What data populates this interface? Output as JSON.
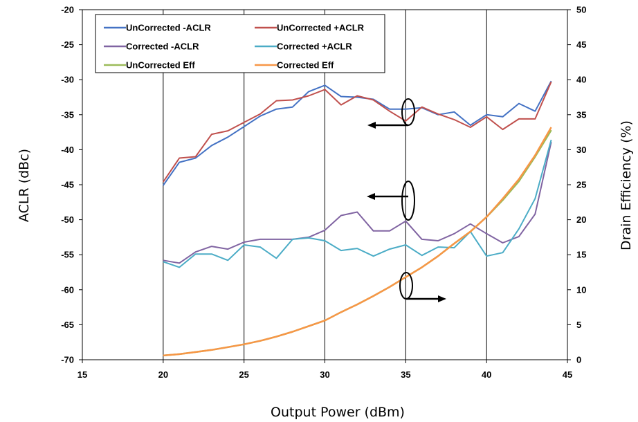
{
  "chart_data": {
    "type": "line",
    "xlabel": "Output Power (dBm)",
    "ylabel": "ACLR (dBc)",
    "y2label": "Drain Efficiency (%)",
    "xlim": [
      15,
      45
    ],
    "ylim": [
      -70,
      -20
    ],
    "y2lim": [
      0,
      50
    ],
    "xticks": [
      "15",
      "20",
      "25",
      "30",
      "35",
      "40",
      "45"
    ],
    "yticks": [
      "-20",
      "-25",
      "-30",
      "-35",
      "-40",
      "-45",
      "-50",
      "-55",
      "-60",
      "-65",
      "-70"
    ],
    "y2ticks": [
      "50",
      "45",
      "40",
      "35",
      "30",
      "25",
      "20",
      "15",
      "10",
      "5",
      "0"
    ],
    "grid": "vertical",
    "legend_position": "top-left",
    "series": [
      {
        "name": "UnCorrected -ACLR",
        "axis": "left",
        "color": "#4472C4",
        "x": [
          20,
          21,
          22,
          23,
          24,
          25,
          26,
          27,
          28,
          29,
          30,
          31,
          32,
          33,
          34,
          35,
          36,
          37,
          38,
          39,
          40,
          41,
          42,
          43,
          44
        ],
        "values": [
          -45.1,
          -41.8,
          -41.2,
          -39.4,
          -38.2,
          -36.7,
          -35.2,
          -34.2,
          -33.9,
          -31.7,
          -30.8,
          -32.4,
          -32.5,
          -32.8,
          -34.2,
          -34.2,
          -34.0,
          -35.0,
          -34.6,
          -36.5,
          -35.0,
          -35.3,
          -33.4,
          -34.5,
          -30.2
        ]
      },
      {
        "name": "UnCorrected +ACLR",
        "axis": "left",
        "color": "#C0504D",
        "x": [
          20,
          21,
          22,
          23,
          24,
          25,
          26,
          27,
          28,
          29,
          30,
          31,
          32,
          33,
          34,
          35,
          36,
          37,
          38,
          39,
          40,
          41,
          42,
          43,
          44
        ],
        "values": [
          -44.6,
          -41.2,
          -41.0,
          -37.8,
          -37.3,
          -36.1,
          -34.9,
          -33.0,
          -32.9,
          -32.3,
          -31.4,
          -33.6,
          -32.3,
          -32.9,
          -34.5,
          -35.9,
          -33.9,
          -34.9,
          -35.7,
          -36.8,
          -35.3,
          -37.1,
          -35.6,
          -35.6,
          -30.3
        ]
      },
      {
        "name": "Corrected -ACLR",
        "axis": "left",
        "color": "#8064A2",
        "x": [
          20,
          21,
          22,
          23,
          24,
          25,
          26,
          27,
          28,
          29,
          30,
          31,
          32,
          33,
          34,
          35,
          36,
          37,
          38,
          39,
          40,
          41,
          42,
          43,
          44
        ],
        "values": [
          -55.8,
          -56.2,
          -54.6,
          -53.8,
          -54.2,
          -53.2,
          -52.8,
          -52.8,
          -52.8,
          -52.5,
          -51.5,
          -49.4,
          -48.9,
          -51.6,
          -51.6,
          -50.2,
          -52.8,
          -53.0,
          -52.0,
          -50.6,
          -52.0,
          -53.3,
          -52.4,
          -49.2,
          -38.9
        ]
      },
      {
        "name": "Corrected +ACLR",
        "axis": "left",
        "color": "#4BACC6",
        "x": [
          20,
          21,
          22,
          23,
          24,
          25,
          26,
          27,
          28,
          29,
          30,
          31,
          32,
          33,
          34,
          35,
          36,
          37,
          38,
          39,
          40,
          41,
          42,
          43,
          44
        ],
        "values": [
          -56.0,
          -56.8,
          -54.9,
          -54.9,
          -55.8,
          -53.6,
          -53.9,
          -55.5,
          -52.8,
          -52.6,
          -53.0,
          -54.4,
          -54.1,
          -55.2,
          -54.2,
          -53.6,
          -55.1,
          -53.9,
          -54.0,
          -51.7,
          -55.2,
          -54.7,
          -51.3,
          -47.0,
          -38.6
        ]
      },
      {
        "name": "UnCorrected Eff",
        "axis": "right",
        "color": "#9BBB59",
        "x": [
          20,
          21,
          22,
          23,
          24,
          25,
          26,
          27,
          28,
          29,
          30,
          31,
          32,
          33,
          34,
          35,
          36,
          37,
          38,
          39,
          40,
          41,
          42,
          43,
          44
        ],
        "values": [
          0.6,
          0.8,
          1.1,
          1.4,
          1.8,
          2.2,
          2.7,
          3.3,
          4.0,
          4.8,
          5.6,
          6.8,
          7.9,
          9.1,
          10.4,
          11.8,
          13.2,
          14.8,
          16.6,
          18.3,
          20.4,
          22.8,
          25.5,
          29.0,
          32.8
        ]
      },
      {
        "name": "Corrected Eff",
        "axis": "right",
        "color": "#F79646",
        "x": [
          20,
          21,
          22,
          23,
          24,
          25,
          26,
          27,
          28,
          29,
          30,
          31,
          32,
          33,
          34,
          35,
          36,
          37,
          38,
          39,
          40,
          41,
          42,
          43,
          44
        ],
        "values": [
          0.6,
          0.8,
          1.1,
          1.4,
          1.8,
          2.2,
          2.7,
          3.3,
          4.0,
          4.8,
          5.6,
          6.8,
          7.9,
          9.1,
          10.4,
          11.8,
          13.2,
          14.8,
          16.6,
          18.3,
          20.4,
          23.0,
          25.8,
          29.2,
          33.2
        ]
      }
    ]
  }
}
